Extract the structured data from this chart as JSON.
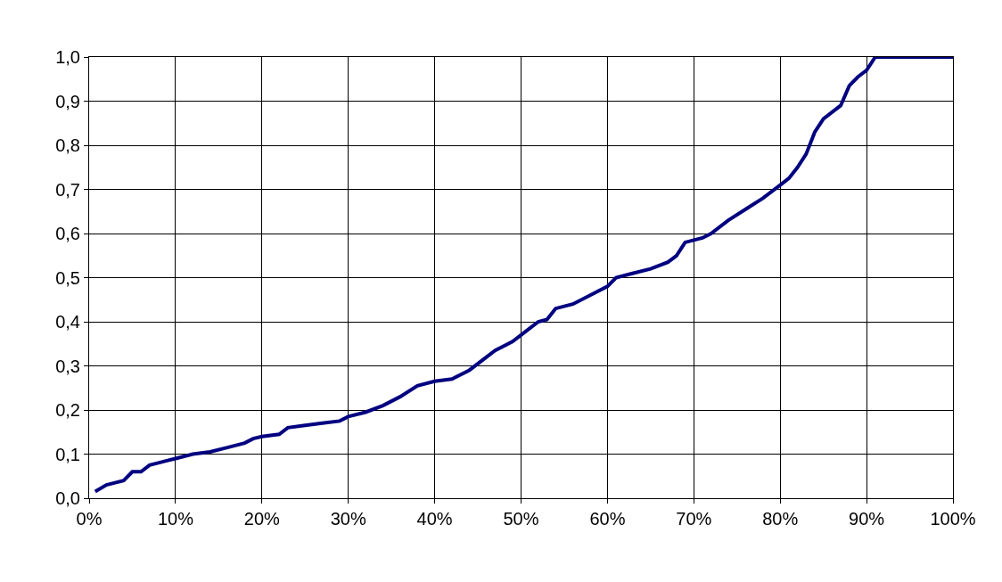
{
  "chart_data": {
    "type": "line",
    "x": [
      0.7,
      2,
      3,
      4,
      5,
      6,
      7,
      8,
      9,
      10,
      12,
      14,
      16,
      18,
      19,
      20,
      22,
      23,
      25,
      27,
      29,
      30,
      32,
      34,
      36,
      38,
      40,
      42,
      44,
      46,
      47,
      49,
      50,
      51,
      52,
      53,
      54,
      55,
      56,
      58,
      60,
      61,
      63,
      65,
      67,
      68,
      69,
      71,
      72,
      74,
      76,
      78,
      80,
      81,
      82,
      83,
      84,
      85,
      86,
      87,
      88,
      89,
      90,
      91,
      100
    ],
    "series": [
      {
        "color": "#000080",
        "values": [
          0.015,
          0.03,
          0.035,
          0.04,
          0.06,
          0.06,
          0.075,
          0.08,
          0.085,
          0.09,
          0.1,
          0.105,
          0.115,
          0.125,
          0.135,
          0.14,
          0.145,
          0.16,
          0.165,
          0.17,
          0.175,
          0.185,
          0.195,
          0.21,
          0.23,
          0.255,
          0.265,
          0.27,
          0.29,
          0.32,
          0.335,
          0.355,
          0.37,
          0.385,
          0.4,
          0.405,
          0.43,
          0.435,
          0.44,
          0.46,
          0.48,
          0.5,
          0.51,
          0.52,
          0.535,
          0.55,
          0.58,
          0.59,
          0.6,
          0.63,
          0.655,
          0.68,
          0.71,
          0.725,
          0.75,
          0.78,
          0.83,
          0.86,
          0.875,
          0.89,
          0.935,
          0.955,
          0.97,
          1.0,
          1.0
        ]
      }
    ],
    "xlim": [
      0,
      100
    ],
    "xticks": [
      {
        "value": 0,
        "label": "0%"
      },
      {
        "value": 10,
        "label": "10%"
      },
      {
        "value": 20,
        "label": "20%"
      },
      {
        "value": 30,
        "label": "30%"
      },
      {
        "value": 40,
        "label": "40%"
      },
      {
        "value": 50,
        "label": "50%"
      },
      {
        "value": 60,
        "label": "60%"
      },
      {
        "value": 70,
        "label": "70%"
      },
      {
        "value": 80,
        "label": "80%"
      },
      {
        "value": 90,
        "label": "90%"
      },
      {
        "value": 100,
        "label": "100%"
      }
    ],
    "ylim": [
      0,
      1
    ],
    "yticks": [
      {
        "value": 0,
        "label": "0,0"
      },
      {
        "value": 0.1,
        "label": "0,1"
      },
      {
        "value": 0.2,
        "label": "0,2"
      },
      {
        "value": 0.3,
        "label": "0,3"
      },
      {
        "value": 0.4,
        "label": "0,4"
      },
      {
        "value": 0.5,
        "label": "0,5"
      },
      {
        "value": 0.6,
        "label": "0,6"
      },
      {
        "value": 0.7,
        "label": "0,7"
      },
      {
        "value": 0.8,
        "label": "0,8"
      },
      {
        "value": 0.9,
        "label": "0,9"
      },
      {
        "value": 1.0,
        "label": "1,0"
      }
    ],
    "grid": true,
    "line_style": "solid",
    "marker": "none"
  }
}
